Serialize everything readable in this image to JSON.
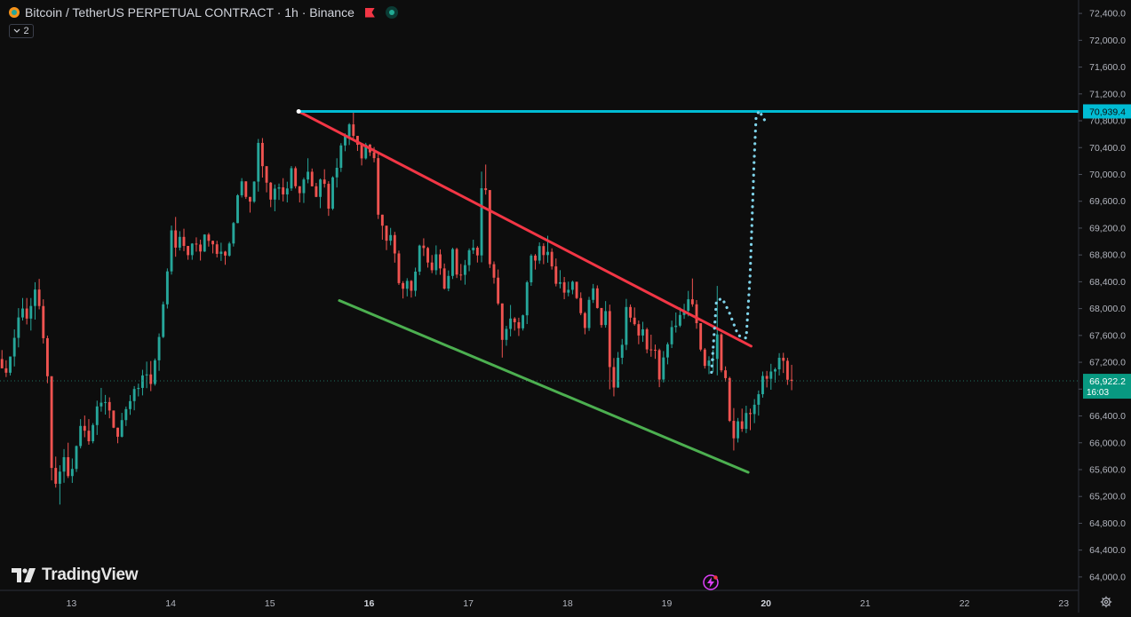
{
  "header": {
    "symbol_title": "Bitcoin / TetherUS PERPETUAL CONTRACT · 1h · Binance",
    "indicator_count": "2"
  },
  "branding": {
    "logo_text": "TradingView"
  },
  "colors": {
    "background": "#0d0d0d",
    "up": "#26a69a",
    "down": "#ef5350",
    "resistance_line": "#f23645",
    "support_line": "#4caf50",
    "target_line": "#00bcd4",
    "projection": "#7fd3ea",
    "last_price_label": "#089981",
    "axis_text": "#b2b5be"
  },
  "chart_data": {
    "type": "candlestick",
    "title": "Bitcoin / TetherUS PERPETUAL CONTRACT · 1h · Binance",
    "x_tick_labels": [
      "13",
      "14",
      "15",
      "16",
      "17",
      "18",
      "19",
      "20",
      "21",
      "22",
      "23"
    ],
    "x_range_days": [
      12.28,
      23.15
    ],
    "y_tick_labels": [
      "72,400.0",
      "72,000.0",
      "71,600.0",
      "71,200.0",
      "70,800.0",
      "70,400.0",
      "70,000.0",
      "69,600.0",
      "69,200.0",
      "68,800.0",
      "68,400.0",
      "68,000.0",
      "67,600.0",
      "67,200.0",
      "66,800.0",
      "66,400.0",
      "66,000.0",
      "65,600.0",
      "65,200.0",
      "64,800.0",
      "64,400.0",
      "64,000.0"
    ],
    "ylim": [
      63800,
      72600
    ],
    "last_price": {
      "value": 66922.2,
      "label": "66,922.2",
      "countdown": "16:03"
    },
    "horizontal_level": {
      "value": 70939.4,
      "label": "70,939.4"
    },
    "annotations": {
      "resistance_line": {
        "from": [
          15.29,
          70939
        ],
        "to": [
          19.85,
          67440
        ]
      },
      "support_line": {
        "from": [
          15.7,
          68120
        ],
        "to": [
          19.82,
          65560
        ]
      },
      "projected_path": [
        [
          19.45,
          67050
        ],
        [
          19.5,
          68120
        ],
        [
          19.56,
          68150
        ],
        [
          19.63,
          67940
        ],
        [
          19.72,
          67600
        ],
        [
          19.8,
          67560
        ],
        [
          19.84,
          68500
        ],
        [
          19.88,
          70200
        ],
        [
          19.9,
          70850
        ],
        [
          19.93,
          70950
        ],
        [
          19.97,
          70850
        ],
        [
          20.01,
          70750
        ]
      ]
    },
    "candles_ohlc": [
      [
        67248,
        67382,
        67110,
        67110
      ],
      [
        67110,
        67230,
        66980,
        67044
      ],
      [
        67044,
        67286,
        67004,
        67286
      ],
      [
        67286,
        67690,
        67138,
        67564
      ],
      [
        67564,
        68007,
        67422,
        67868
      ],
      [
        67868,
        68158,
        67822,
        68001
      ],
      [
        68001,
        68158,
        67764,
        67851
      ],
      [
        67851,
        68158,
        67673,
        68039
      ],
      [
        68039,
        68393,
        67836,
        68284
      ],
      [
        68284,
        68443,
        67989,
        68038
      ],
      [
        68038,
        68139,
        67480,
        67559
      ],
      [
        67559,
        67597,
        66888,
        66992
      ],
      [
        66992,
        66992,
        65439,
        65625
      ],
      [
        65625,
        65794,
        65332,
        65389
      ],
      [
        65389,
        65665,
        65079,
        65570
      ],
      [
        65570,
        65906,
        65404,
        65785
      ],
      [
        65785,
        66001,
        65475,
        65504
      ],
      [
        65504,
        65766,
        65402,
        65610
      ],
      [
        65610,
        65960,
        65565,
        65951
      ],
      [
        65951,
        66353,
        65916,
        66251
      ],
      [
        66251,
        66406,
        66083,
        66180
      ],
      [
        66180,
        66353,
        65971,
        66023
      ],
      [
        66023,
        66293,
        65992,
        66264
      ],
      [
        66264,
        66628,
        66117,
        66542
      ],
      [
        66542,
        66818,
        66464,
        66598
      ],
      [
        66598,
        66713,
        66420,
        66607
      ],
      [
        66607,
        66677,
        66365,
        66481
      ],
      [
        66481,
        66481,
        66218,
        66225
      ],
      [
        66225,
        66225,
        65993,
        66090
      ],
      [
        66090,
        66446,
        66079,
        66338
      ],
      [
        66338,
        66540,
        66250,
        66502
      ],
      [
        66502,
        66711,
        66416,
        66621
      ],
      [
        66621,
        66845,
        66484,
        66802
      ],
      [
        66802,
        66882,
        66691,
        66818
      ],
      [
        66818,
        67088,
        66706,
        67004
      ],
      [
        67004,
        67210,
        66814,
        67019
      ],
      [
        67019,
        67219,
        66770,
        66877
      ],
      [
        66877,
        67256,
        66852,
        67229
      ],
      [
        67229,
        67630,
        67072,
        67577
      ],
      [
        67577,
        68105,
        67561,
        68064
      ],
      [
        68064,
        68599,
        68001,
        68555
      ],
      [
        68555,
        69238,
        68507,
        69166
      ],
      [
        69166,
        69366,
        68773,
        68909
      ],
      [
        68909,
        69154,
        68866,
        69069
      ],
      [
        69069,
        69191,
        68857,
        68934
      ],
      [
        68934,
        68934,
        68728,
        68797
      ],
      [
        68797,
        68975,
        68728,
        68969
      ],
      [
        68969,
        69062,
        68849,
        68955
      ],
      [
        68955,
        69028,
        68716,
        68851
      ],
      [
        68851,
        69108,
        68844,
        69104
      ],
      [
        69104,
        69129,
        68924,
        69010
      ],
      [
        69010,
        69014,
        68823,
        68958
      ],
      [
        68958,
        69011,
        68762,
        68816
      ],
      [
        68816,
        68982,
        68711,
        68849
      ],
      [
        68849,
        68861,
        68653,
        68790
      ],
      [
        68790,
        68995,
        68774,
        68970
      ],
      [
        68970,
        69292,
        68925,
        69275
      ],
      [
        69275,
        69706,
        69272,
        69689
      ],
      [
        69689,
        69945,
        69656,
        69897
      ],
      [
        69897,
        69897,
        69635,
        69665
      ],
      [
        69665,
        69665,
        69431,
        69595
      ],
      [
        69595,
        69899,
        69575,
        69893
      ],
      [
        69893,
        70528,
        69744,
        70470
      ],
      [
        70470,
        70542,
        69953,
        70123
      ],
      [
        70123,
        70123,
        69733,
        69877
      ],
      [
        69877,
        69886,
        69512,
        69625
      ],
      [
        69625,
        69850,
        69451,
        69788
      ],
      [
        69788,
        69864,
        69620,
        69807
      ],
      [
        69807,
        69944,
        69597,
        69702
      ],
      [
        69702,
        69892,
        69583,
        69791
      ],
      [
        69791,
        70125,
        69755,
        70093
      ],
      [
        70093,
        70120,
        69791,
        69824
      ],
      [
        69824,
        69824,
        69583,
        69721
      ],
      [
        69721,
        69952,
        69575,
        69925
      ],
      [
        69925,
        70241,
        69868,
        70040
      ],
      [
        70040,
        70088,
        69820,
        69823
      ],
      [
        69823,
        69874,
        69661,
        69665
      ],
      [
        69665,
        69939,
        69497,
        69924
      ],
      [
        69924,
        70077,
        69804,
        69860
      ],
      [
        69860,
        69899,
        69382,
        69490
      ],
      [
        69490,
        69972,
        69469,
        69956
      ],
      [
        69956,
        70241,
        69805,
        70099
      ],
      [
        70099,
        70466,
        70037,
        70432
      ],
      [
        70432,
        70612,
        70346,
        70568
      ],
      [
        70568,
        70765,
        70438,
        70746
      ],
      [
        70746,
        70939,
        70540,
        70575
      ],
      [
        70575,
        70575,
        70350,
        70442
      ],
      [
        70442,
        70442,
        70134,
        70239
      ],
      [
        70239,
        70471,
        70223,
        70445
      ],
      [
        70445,
        70452,
        70275,
        70329
      ],
      [
        70329,
        70408,
        70181,
        70243
      ],
      [
        70243,
        70325,
        69336,
        69400
      ],
      [
        69400,
        69400,
        69027,
        69236
      ],
      [
        69236,
        69236,
        68872,
        69012
      ],
      [
        69012,
        69203,
        68943,
        69096
      ],
      [
        69096,
        69144,
        68685,
        68822
      ],
      [
        68822,
        68865,
        68353,
        68380
      ],
      [
        68380,
        68409,
        68151,
        68296
      ],
      [
        68296,
        68453,
        68182,
        68413
      ],
      [
        68413,
        68425,
        68165,
        68266
      ],
      [
        68266,
        68611,
        68182,
        68551
      ],
      [
        68551,
        68953,
        68499,
        68939
      ],
      [
        68939,
        69048,
        68784,
        68903
      ],
      [
        68903,
        68920,
        68611,
        68687
      ],
      [
        68687,
        68799,
        68529,
        68572
      ],
      [
        68572,
        68942,
        68503,
        68809
      ],
      [
        68809,
        68883,
        68504,
        68599
      ],
      [
        68599,
        68672,
        68284,
        68299
      ],
      [
        68299,
        68569,
        68259,
        68487
      ],
      [
        68487,
        68907,
        68441,
        68887
      ],
      [
        68887,
        68907,
        68456,
        68507
      ],
      [
        68507,
        68665,
        68421,
        68503
      ],
      [
        68503,
        68725,
        68357,
        68648
      ],
      [
        68648,
        68897,
        68557,
        68869
      ],
      [
        68869,
        69027,
        68815,
        68908
      ],
      [
        68908,
        68932,
        68687,
        68793
      ],
      [
        68793,
        70042,
        68690,
        69794
      ],
      [
        69794,
        70147,
        69699,
        69767
      ],
      [
        69767,
        69767,
        68605,
        68662
      ],
      [
        68662,
        68703,
        68372,
        68461
      ],
      [
        68461,
        68583,
        68052,
        68077
      ],
      [
        68077,
        68077,
        67270,
        67534
      ],
      [
        67534,
        67743,
        67446,
        67697
      ],
      [
        67697,
        68054,
        67586,
        67852
      ],
      [
        67852,
        67873,
        67672,
        67797
      ],
      [
        67797,
        67864,
        67592,
        67706
      ],
      [
        67706,
        67911,
        67673,
        67900
      ],
      [
        67900,
        68416,
        67770,
        68392
      ],
      [
        68392,
        68813,
        68339,
        68790
      ],
      [
        68790,
        68813,
        68582,
        68716
      ],
      [
        68716,
        68987,
        68667,
        68932
      ],
      [
        68932,
        68975,
        68662,
        68798
      ],
      [
        68798,
        69086,
        68684,
        68846
      ],
      [
        68846,
        68898,
        68582,
        68629
      ],
      [
        68629,
        68747,
        68331,
        68370
      ],
      [
        68370,
        68573,
        68302,
        68393
      ],
      [
        68393,
        68471,
        68140,
        68238
      ],
      [
        68238,
        68402,
        68183,
        68280
      ],
      [
        68280,
        68417,
        68213,
        68400
      ],
      [
        68400,
        68400,
        68140,
        68157
      ],
      [
        68157,
        68242,
        67902,
        67932
      ],
      [
        67932,
        67951,
        67617,
        67711
      ],
      [
        67711,
        68175,
        67667,
        68130
      ],
      [
        68130,
        68367,
        68084,
        68302
      ],
      [
        68302,
        68346,
        68000,
        68009
      ],
      [
        68009,
        68009,
        67715,
        67755
      ],
      [
        67755,
        68112,
        67716,
        67963
      ],
      [
        67963,
        68059,
        66797,
        67129
      ],
      [
        67129,
        67263,
        66692,
        66824
      ],
      [
        66824,
        67353,
        66818,
        67267
      ],
      [
        67267,
        67548,
        67171,
        67460
      ],
      [
        67460,
        68145,
        67382,
        68024
      ],
      [
        68024,
        68062,
        67798,
        67865
      ],
      [
        67865,
        68017,
        67746,
        67768
      ],
      [
        67768,
        67823,
        67469,
        67599
      ],
      [
        67599,
        67803,
        67504,
        67691
      ],
      [
        67691,
        67715,
        67334,
        67392
      ],
      [
        67392,
        67611,
        67282,
        67386
      ],
      [
        67386,
        67464,
        67251,
        67381
      ],
      [
        67381,
        67403,
        66829,
        66943
      ],
      [
        66943,
        67367,
        66900,
        67272
      ],
      [
        67272,
        67497,
        67169,
        67468
      ],
      [
        67468,
        67821,
        67412,
        67725
      ],
      [
        67725,
        67942,
        67643,
        67746
      ],
      [
        67746,
        68018,
        67723,
        67905
      ],
      [
        67905,
        68071,
        67847,
        67967
      ],
      [
        67967,
        68264,
        67885,
        68139
      ],
      [
        68139,
        68449,
        68028,
        68064
      ],
      [
        68064,
        68127,
        67699,
        67783
      ],
      [
        67783,
        67783,
        67364,
        67390
      ],
      [
        67390,
        67412,
        67107,
        67146
      ],
      [
        67146,
        67290,
        67023,
        67226
      ],
      [
        67226,
        67386,
        67055,
        67250
      ],
      [
        67250,
        68338,
        67005,
        67615
      ],
      [
        67615,
        67632,
        67050,
        67080
      ],
      [
        67080,
        67139,
        66910,
        66964
      ],
      [
        66964,
        66984,
        66310,
        66327
      ],
      [
        66327,
        66517,
        65885,
        66067
      ],
      [
        66067,
        66370,
        66004,
        66320
      ],
      [
        66320,
        66509,
        66163,
        66207
      ],
      [
        66207,
        66552,
        66144,
        66444
      ],
      [
        66444,
        66509,
        66188,
        66428
      ],
      [
        66428,
        66651,
        66293,
        66567
      ],
      [
        66567,
        66779,
        66405,
        66724
      ],
      [
        66724,
        67062,
        66673,
        66996
      ],
      [
        66996,
        67071,
        66825,
        66954
      ],
      [
        66954,
        67177,
        66791,
        67062
      ],
      [
        67062,
        67119,
        66899,
        67095
      ],
      [
        67095,
        67336,
        67003,
        67267
      ],
      [
        67267,
        67341,
        67040,
        67222
      ],
      [
        67222,
        67266,
        66863,
        66940
      ],
      [
        66940,
        67162,
        66784,
        66922
      ]
    ]
  }
}
